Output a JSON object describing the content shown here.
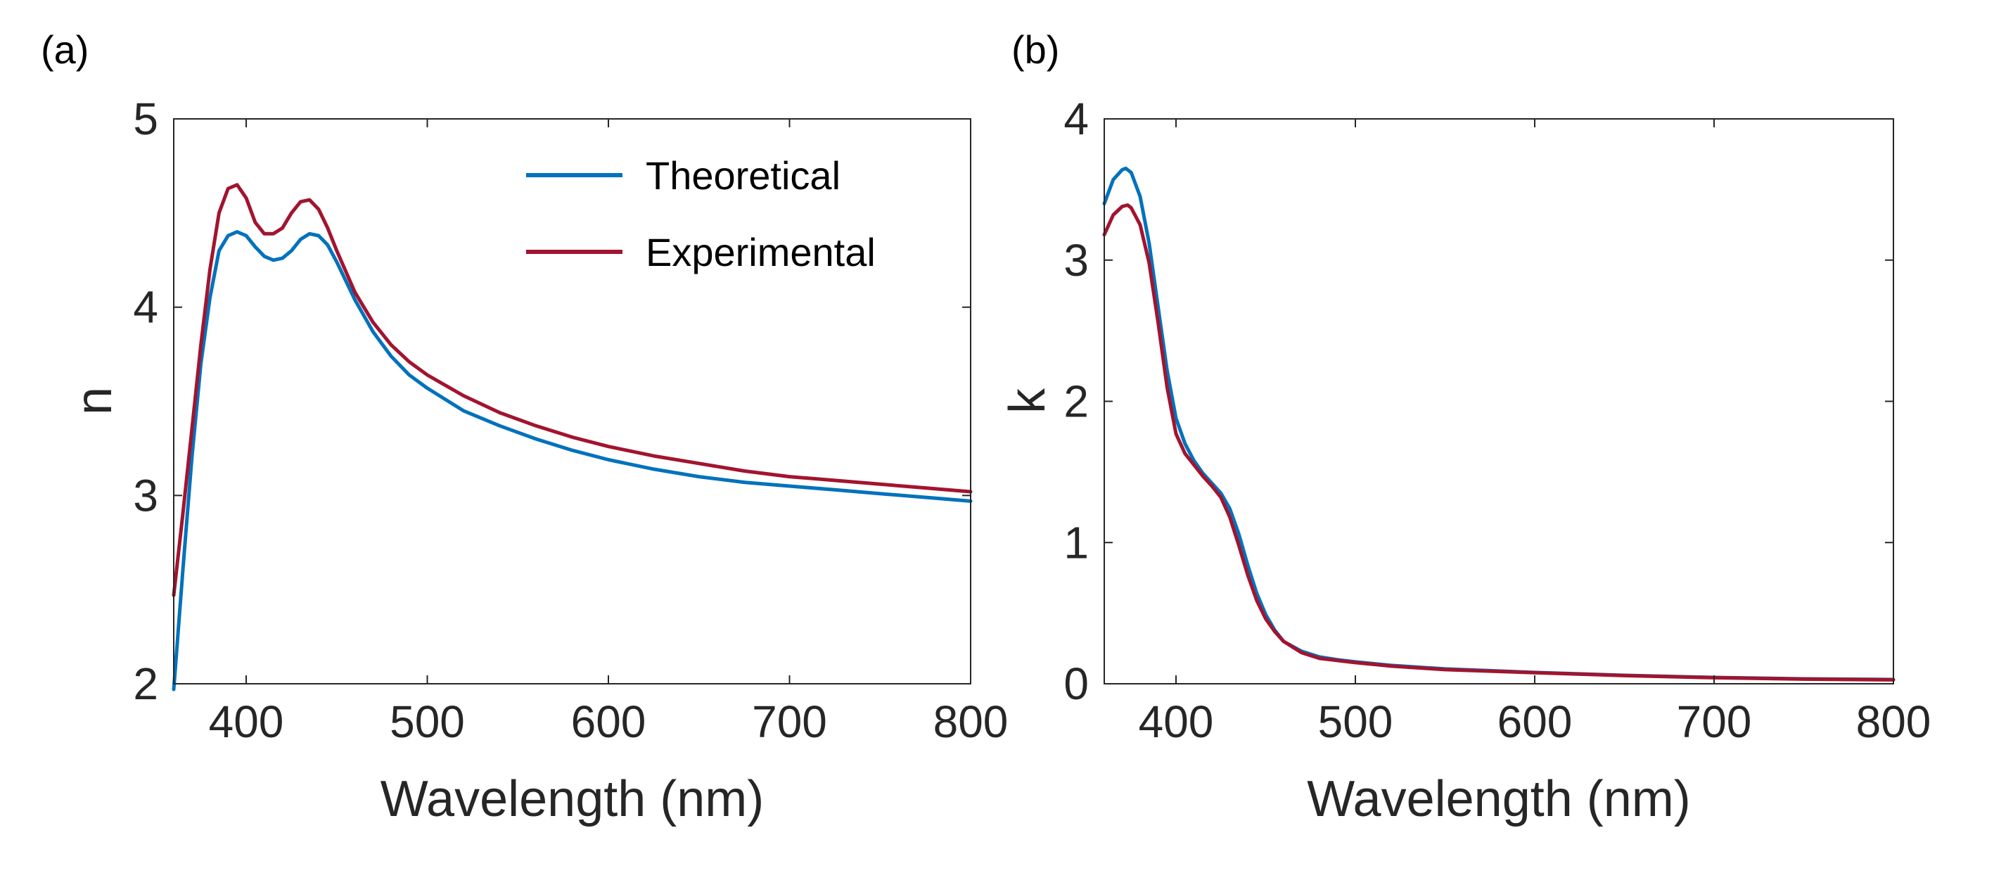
{
  "chart_data": [
    {
      "type": "line",
      "panel_label": "(a)",
      "xlabel": "Wavelength (nm)",
      "ylabel": "n",
      "xlim": [
        360,
        800
      ],
      "ylim": [
        2,
        5
      ],
      "xticks": [
        400,
        500,
        600,
        700,
        800
      ],
      "xtick_labels": [
        "400",
        "500",
        "600",
        "700",
        "800"
      ],
      "yticks": [
        2,
        3,
        4,
        5
      ],
      "ytick_labels": [
        "2",
        "3",
        "4",
        "5"
      ],
      "legend": {
        "placement": "top-right",
        "entries": [
          {
            "label": "Theoretical",
            "color": "#0072BD"
          },
          {
            "label": "Experimental",
            "color": "#A2142F"
          }
        ]
      },
      "series": [
        {
          "name": "Theoretical",
          "color": "#0072BD",
          "x": [
            360,
            365,
            370,
            375,
            380,
            385,
            390,
            395,
            400,
            405,
            410,
            415,
            420,
            425,
            430,
            435,
            440,
            445,
            450,
            460,
            470,
            480,
            490,
            500,
            520,
            540,
            560,
            580,
            600,
            625,
            650,
            675,
            700,
            725,
            750,
            775,
            800
          ],
          "y": [
            1.97,
            2.6,
            3.2,
            3.7,
            4.05,
            4.3,
            4.38,
            4.4,
            4.38,
            4.32,
            4.27,
            4.25,
            4.26,
            4.3,
            4.36,
            4.39,
            4.38,
            4.33,
            4.24,
            4.04,
            3.87,
            3.74,
            3.64,
            3.57,
            3.45,
            3.37,
            3.3,
            3.24,
            3.19,
            3.14,
            3.1,
            3.07,
            3.05,
            3.03,
            3.01,
            2.99,
            2.97
          ]
        },
        {
          "name": "Experimental",
          "color": "#A2142F",
          "x": [
            360,
            365,
            370,
            375,
            380,
            385,
            390,
            395,
            400,
            405,
            410,
            415,
            420,
            425,
            430,
            435,
            440,
            445,
            450,
            460,
            470,
            480,
            490,
            500,
            520,
            540,
            560,
            580,
            600,
            625,
            650,
            675,
            700,
            725,
            750,
            775,
            800
          ],
          "y": [
            2.47,
            2.9,
            3.35,
            3.8,
            4.2,
            4.5,
            4.63,
            4.65,
            4.58,
            4.45,
            4.39,
            4.39,
            4.42,
            4.5,
            4.56,
            4.57,
            4.52,
            4.42,
            4.3,
            4.08,
            3.92,
            3.8,
            3.71,
            3.64,
            3.53,
            3.44,
            3.37,
            3.31,
            3.26,
            3.21,
            3.17,
            3.13,
            3.1,
            3.08,
            3.06,
            3.04,
            3.02
          ]
        }
      ]
    },
    {
      "type": "line",
      "panel_label": "(b)",
      "xlabel": "Wavelength (nm)",
      "ylabel": "k",
      "xlim": [
        360,
        800
      ],
      "ylim": [
        0,
        4
      ],
      "xticks": [
        400,
        500,
        600,
        700,
        800
      ],
      "xtick_labels": [
        "400",
        "500",
        "600",
        "700",
        "800"
      ],
      "yticks": [
        0,
        1,
        2,
        3,
        4
      ],
      "ytick_labels": [
        "0",
        "1",
        "2",
        "3",
        "4"
      ],
      "series": [
        {
          "name": "Theoretical",
          "color": "#0072BD",
          "x": [
            360,
            365,
            370,
            372,
            375,
            380,
            385,
            390,
            395,
            400,
            405,
            410,
            415,
            420,
            425,
            430,
            435,
            440,
            445,
            450,
            455,
            460,
            470,
            480,
            490,
            500,
            520,
            550,
            600,
            650,
            700,
            750,
            800
          ],
          "y": [
            3.4,
            3.57,
            3.64,
            3.65,
            3.62,
            3.45,
            3.12,
            2.67,
            2.22,
            1.88,
            1.7,
            1.58,
            1.49,
            1.42,
            1.35,
            1.24,
            1.06,
            0.84,
            0.64,
            0.49,
            0.38,
            0.3,
            0.23,
            0.19,
            0.17,
            0.155,
            0.13,
            0.105,
            0.08,
            0.06,
            0.045,
            0.035,
            0.03
          ]
        },
        {
          "name": "Experimental",
          "color": "#A2142F",
          "x": [
            360,
            365,
            370,
            373,
            375,
            380,
            385,
            390,
            395,
            400,
            405,
            410,
            415,
            420,
            425,
            430,
            435,
            440,
            445,
            450,
            455,
            460,
            470,
            480,
            490,
            500,
            520,
            550,
            600,
            650,
            700,
            750,
            800
          ],
          "y": [
            3.18,
            3.32,
            3.38,
            3.39,
            3.37,
            3.25,
            2.98,
            2.56,
            2.1,
            1.77,
            1.63,
            1.55,
            1.47,
            1.4,
            1.32,
            1.18,
            0.98,
            0.77,
            0.59,
            0.46,
            0.37,
            0.3,
            0.22,
            0.18,
            0.165,
            0.15,
            0.125,
            0.1,
            0.078,
            0.058,
            0.043,
            0.033,
            0.028
          ]
        }
      ]
    }
  ]
}
